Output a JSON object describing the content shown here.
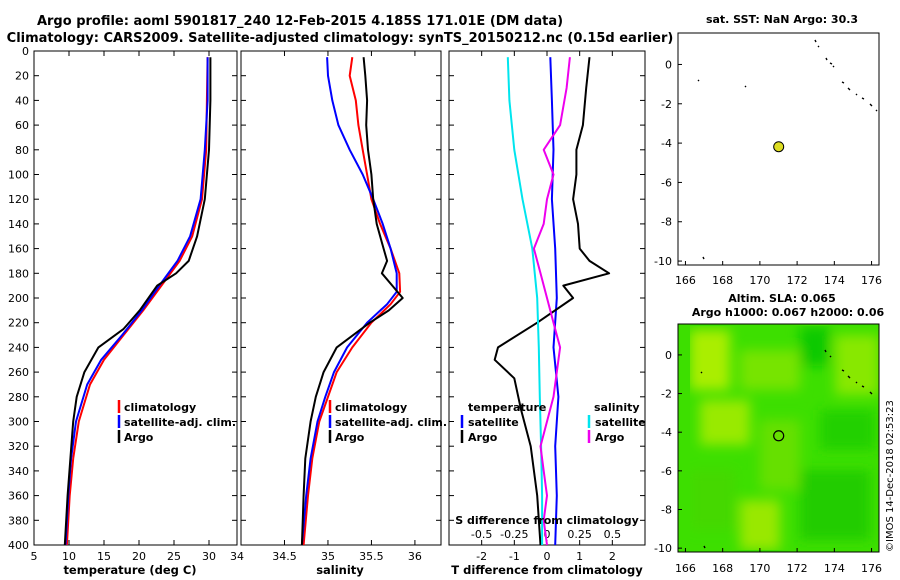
{
  "title": {
    "line1": "Argo profile: aoml 5901817_240 12-Feb-2015 4.185S 171.01E (DM data)",
    "line2": "Climatology: CARS2009. Satellite-adjusted climatology: synTS_20150212.nc (0.15d earlier)"
  },
  "credit": "©IMOS 14-Dec-2018 02:53:23",
  "colors": {
    "climatology": "#ff0000",
    "satellite": "#0000ff",
    "argo": "#000000",
    "sat_s": "#00e5ee",
    "argo_s": "#ee00ee",
    "map_green": "#33dd00",
    "marker": "#dddd22"
  },
  "chart_data": [
    {
      "id": "temperature",
      "type": "line",
      "xlabel": "temperature (deg C)",
      "xlim": [
        5,
        34
      ],
      "xticks": [
        5,
        10,
        15,
        20,
        25,
        30
      ],
      "ylim": [
        400,
        0
      ],
      "yticks": [
        0,
        20,
        40,
        60,
        80,
        100,
        120,
        140,
        160,
        180,
        200,
        220,
        240,
        260,
        280,
        300,
        320,
        340,
        360,
        380,
        400
      ],
      "legend": [
        "climatology",
        "satellite-adj. clim.",
        "Argo"
      ],
      "series": [
        {
          "name": "climatology",
          "color": "#ff0000",
          "y": [
            5,
            40,
            80,
            120,
            150,
            170,
            190,
            210,
            230,
            250,
            270,
            300,
            330,
            360,
            400
          ],
          "values": [
            29.8,
            29.7,
            29.6,
            29.0,
            27.6,
            25.8,
            23.2,
            20.6,
            17.8,
            15.0,
            13.0,
            11.4,
            10.6,
            10.1,
            9.7
          ]
        },
        {
          "name": "satellite-adj. clim.",
          "color": "#0000ff",
          "y": [
            5,
            40,
            80,
            120,
            150,
            170,
            190,
            210,
            230,
            250,
            270,
            300,
            330,
            360,
            400
          ],
          "values": [
            29.8,
            29.8,
            29.4,
            28.8,
            27.3,
            25.5,
            22.9,
            20.4,
            17.6,
            14.6,
            12.6,
            11.0,
            10.3,
            9.9,
            9.5
          ]
        },
        {
          "name": "Argo",
          "color": "#000000",
          "y": [
            5,
            40,
            80,
            120,
            150,
            170,
            180,
            190,
            210,
            225,
            240,
            260,
            280,
            300,
            330,
            360,
            400
          ],
          "values": [
            30.2,
            30.2,
            30.0,
            29.4,
            28.3,
            27.1,
            25.3,
            22.6,
            20.1,
            17.8,
            14.2,
            12.2,
            11.1,
            10.6,
            10.2,
            9.8,
            9.4
          ]
        }
      ]
    },
    {
      "id": "salinity",
      "type": "line",
      "xlabel": "salinity",
      "xlim": [
        34,
        36.3
      ],
      "xticks": [
        34.5,
        35,
        35.5,
        36
      ],
      "xticklabels": [
        "34.5",
        "35",
        "35.5",
        "36"
      ],
      "ylim": [
        400,
        0
      ],
      "legend": [
        "climatology",
        "satellite-adj. clim.",
        "Argo"
      ],
      "series": [
        {
          "name": "climatology",
          "color": "#ff0000",
          "y": [
            5,
            20,
            40,
            60,
            80,
            100,
            120,
            140,
            160,
            180,
            195,
            205,
            220,
            240,
            260,
            280,
            300,
            330,
            360,
            400
          ],
          "values": [
            35.28,
            35.25,
            35.32,
            35.35,
            35.4,
            35.45,
            35.5,
            35.6,
            35.72,
            35.82,
            35.83,
            35.72,
            35.5,
            35.28,
            35.1,
            35.0,
            34.9,
            34.82,
            34.77,
            34.72
          ]
        },
        {
          "name": "satellite-adj. clim.",
          "color": "#0000ff",
          "y": [
            5,
            20,
            40,
            60,
            80,
            100,
            120,
            140,
            160,
            180,
            195,
            205,
            220,
            240,
            260,
            280,
            300,
            330,
            360,
            400
          ],
          "values": [
            34.99,
            35.0,
            35.05,
            35.12,
            35.25,
            35.4,
            35.52,
            35.63,
            35.72,
            35.79,
            35.79,
            35.68,
            35.45,
            35.22,
            35.07,
            34.97,
            34.88,
            34.8,
            34.75,
            34.7
          ]
        },
        {
          "name": "Argo",
          "color": "#000000",
          "y": [
            5,
            20,
            40,
            60,
            80,
            100,
            120,
            140,
            160,
            170,
            180,
            190,
            200,
            210,
            220,
            240,
            260,
            280,
            300,
            330,
            360,
            400
          ],
          "values": [
            35.41,
            35.43,
            35.45,
            35.44,
            35.46,
            35.5,
            35.52,
            35.56,
            35.64,
            35.68,
            35.62,
            35.74,
            35.86,
            35.7,
            35.48,
            35.1,
            34.95,
            34.86,
            34.8,
            34.74,
            34.72,
            34.7
          ]
        }
      ]
    },
    {
      "id": "difference",
      "type": "line",
      "xlabel": "T difference from climatology",
      "xlabel_top": "S difference from climatology",
      "xlim": [
        -3,
        3
      ],
      "xticks": [
        -2,
        -1,
        0,
        1,
        2
      ],
      "xticks_s": [
        -0.5,
        -0.25,
        0,
        0.25,
        0.5
      ],
      "xticks_s_labels": [
        "-0.5",
        "-0.25",
        "0",
        "0.25",
        "0.5"
      ],
      "ylim": [
        400,
        0
      ],
      "legend_temperature": {
        "title": "temperature",
        "items": [
          "satellite",
          "Argo"
        ]
      },
      "legend_salinity": {
        "title": "salinity",
        "items": [
          "satellite",
          "Argo"
        ]
      },
      "series": [
        {
          "name": "T satellite",
          "color": "#0000ff",
          "y": [
            5,
            40,
            80,
            120,
            160,
            200,
            240,
            280,
            320,
            360,
            400
          ],
          "values": [
            0.1,
            0.15,
            0.2,
            0.15,
            0.25,
            0.3,
            0.2,
            0.35,
            0.25,
            0.3,
            0.25
          ]
        },
        {
          "name": "T Argo",
          "color": "#000000",
          "y": [
            5,
            30,
            60,
            80,
            100,
            120,
            140,
            160,
            170,
            180,
            190,
            200,
            220,
            240,
            250,
            265,
            290,
            320,
            360,
            400
          ],
          "values": [
            1.3,
            1.2,
            1.1,
            0.9,
            0.9,
            0.8,
            0.95,
            1.0,
            1.3,
            1.9,
            0.5,
            0.8,
            -0.3,
            -1.5,
            -1.6,
            -1.0,
            -0.8,
            -0.5,
            -0.3,
            -0.2
          ]
        },
        {
          "name": "S satellite",
          "color": "#00e5ee",
          "y": [
            5,
            40,
            80,
            120,
            160,
            200,
            240,
            280,
            320,
            360,
            400
          ],
          "values": [
            -1.2,
            -1.15,
            -1.0,
            -0.75,
            -0.45,
            -0.3,
            -0.25,
            -0.22,
            -0.18,
            -0.15,
            -0.15
          ]
        },
        {
          "name": "S Argo",
          "color": "#ee00ee",
          "y": [
            5,
            30,
            60,
            80,
            100,
            120,
            140,
            160,
            180,
            200,
            220,
            240,
            260,
            280,
            300,
            320,
            340,
            360,
            380,
            400
          ],
          "values": [
            0.7,
            0.6,
            0.4,
            -0.1,
            0.2,
            0.0,
            -0.1,
            -0.4,
            -0.2,
            0.0,
            0.2,
            0.4,
            0.3,
            0.2,
            0.0,
            -0.2,
            -0.1,
            0.0,
            -0.1,
            0.0
          ]
        }
      ]
    },
    {
      "id": "sst_map",
      "type": "scatter",
      "title": "sat. SST: NaN Argo: 30.3",
      "xlim": [
        165.6,
        176.4
      ],
      "ylim": [
        -10.2,
        1.6
      ],
      "xticks": [
        166,
        168,
        170,
        172,
        174,
        176
      ],
      "yticks": [
        0,
        -2,
        -4,
        -6,
        -8,
        -10
      ],
      "marker": {
        "lon": 171.01,
        "lat": -4.185,
        "fill": "#dddd22"
      }
    },
    {
      "id": "sla_map",
      "type": "heatmap",
      "title_line1": "Altim. SLA: 0.065",
      "title_line2": "Argo h1000: 0.067 h2000: 0.06",
      "xlim": [
        165.6,
        176.4
      ],
      "ylim": [
        -10.2,
        1.6
      ],
      "xticks": [
        166,
        168,
        170,
        172,
        174,
        176
      ],
      "yticks": [
        0,
        -2,
        -4,
        -6,
        -8,
        -10
      ],
      "marker": {
        "lon": 171.01,
        "lat": -4.185,
        "fill": "none"
      }
    }
  ]
}
